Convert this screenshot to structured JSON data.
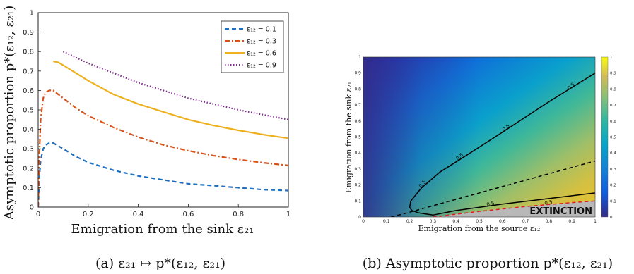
{
  "figure": {
    "caption_a": "(a) ε₂₁ ↦ p*(ε₁₂, ε₂₁)",
    "caption_b": "(b) Asymptotic proportion p*(ε₁₂, ε₂₁)"
  },
  "chart_data": [
    {
      "type": "line",
      "xlabel": "Emigration from the sink ε₂₁",
      "ylabel": "Asymptotic proportion p*(ε₁₂, ε₂₁)",
      "xlim": [
        0,
        1
      ],
      "ylim": [
        0,
        1
      ],
      "x_ticks": [
        "0",
        "0.2",
        "0.4",
        "0.6",
        "0.8",
        "1"
      ],
      "y_ticks": [
        "0",
        "0.1",
        "0.2",
        "0.3",
        "0.4",
        "0.5",
        "0.6",
        "0.7",
        "0.8",
        "0.9",
        "1"
      ],
      "grid": false,
      "legend_position": "top-right",
      "series": [
        {
          "name": "ε₁₂ = 0.1",
          "color": "#1f6fc0",
          "dash": "dashed",
          "x": [
            0,
            0.005,
            0.01,
            0.02,
            0.03,
            0.045,
            0.06,
            0.1,
            0.15,
            0.2,
            0.3,
            0.4,
            0.5,
            0.6,
            0.7,
            0.8,
            0.9,
            1.0
          ],
          "y": [
            0,
            0.16,
            0.24,
            0.3,
            0.32,
            0.33,
            0.33,
            0.3,
            0.26,
            0.23,
            0.19,
            0.16,
            0.14,
            0.12,
            0.11,
            0.1,
            0.09,
            0.085
          ]
        },
        {
          "name": "ε₁₂ = 0.3",
          "color": "#d95319",
          "dash": "dashdot",
          "x": [
            0,
            0.005,
            0.01,
            0.02,
            0.03,
            0.045,
            0.06,
            0.1,
            0.15,
            0.2,
            0.3,
            0.4,
            0.5,
            0.6,
            0.7,
            0.8,
            0.9,
            1.0
          ],
          "y": [
            0,
            0.28,
            0.45,
            0.56,
            0.59,
            0.6,
            0.6,
            0.56,
            0.51,
            0.47,
            0.41,
            0.36,
            0.32,
            0.29,
            0.265,
            0.245,
            0.228,
            0.214
          ]
        },
        {
          "name": "ε₁₂ = 0.6",
          "color": "#edb120",
          "dash": "solid",
          "x": [
            0.06,
            0.08,
            0.1,
            0.15,
            0.2,
            0.3,
            0.4,
            0.5,
            0.6,
            0.7,
            0.8,
            0.9,
            1.0
          ],
          "y": [
            0.75,
            0.745,
            0.73,
            0.69,
            0.65,
            0.58,
            0.53,
            0.49,
            0.45,
            0.42,
            0.395,
            0.373,
            0.354
          ]
        },
        {
          "name": "ε₁₂ = 0.9",
          "color": "#7e2f8e",
          "dash": "dotted",
          "x": [
            0.1,
            0.2,
            0.3,
            0.4,
            0.5,
            0.6,
            0.7,
            0.8,
            0.9,
            1.0
          ],
          "y": [
            0.8,
            0.74,
            0.69,
            0.64,
            0.6,
            0.56,
            0.53,
            0.5,
            0.475,
            0.45
          ]
        }
      ]
    },
    {
      "type": "heatmap",
      "xlabel": "Emigration from the source ε₁₂",
      "ylabel": "Emigration from the sink ε₂₁",
      "xlim": [
        0,
        1
      ],
      "ylim": [
        0,
        1
      ],
      "x_ticks": [
        "0",
        "0.1",
        "0.2",
        "0.3",
        "0.4",
        "0.5",
        "0.6",
        "0.7",
        "0.8",
        "0.9",
        "1"
      ],
      "y_ticks": [
        "0",
        "0.1",
        "0.2",
        "0.3",
        "0.4",
        "0.5",
        "0.6",
        "0.7",
        "0.8",
        "0.9",
        "1"
      ],
      "colorbar_ticks": [
        "0",
        "0.1",
        "0.2",
        "0.3",
        "0.4",
        "0.5",
        "0.6",
        "0.7",
        "0.8",
        "0.9",
        "1"
      ],
      "colormap": "parula",
      "region_label": "EXTINCTION",
      "contours": [
        {
          "level_label": "0.5",
          "style": "solid",
          "color": "#000000",
          "x": [
            1.0,
            0.8,
            0.6,
            0.45,
            0.33,
            0.25,
            0.205,
            0.2,
            0.21,
            0.24,
            0.3,
            0.4,
            0.6,
            0.8,
            1.0
          ],
          "y": [
            0.9,
            0.72,
            0.53,
            0.39,
            0.28,
            0.18,
            0.1,
            0.06,
            0.04,
            0.025,
            0.012,
            0.04,
            0.08,
            0.115,
            0.15
          ]
        },
        {
          "level_label": "",
          "style": "dashed",
          "color": "#000000",
          "x": [
            0.12,
            0.2,
            0.4,
            0.6,
            0.8,
            1.0
          ],
          "y": [
            0.0,
            0.03,
            0.11,
            0.19,
            0.27,
            0.35
          ]
        },
        {
          "level_label": "0.5",
          "style": "dashed",
          "color": "#e02020",
          "x": [
            0.3,
            0.5,
            0.7,
            0.9,
            1.0
          ],
          "y": [
            0.0,
            0.035,
            0.065,
            0.09,
            0.1
          ]
        }
      ],
      "contour_labels": [
        "0.5",
        "0.5",
        "0.5",
        "0.5",
        "0.5",
        "0.5"
      ]
    }
  ]
}
